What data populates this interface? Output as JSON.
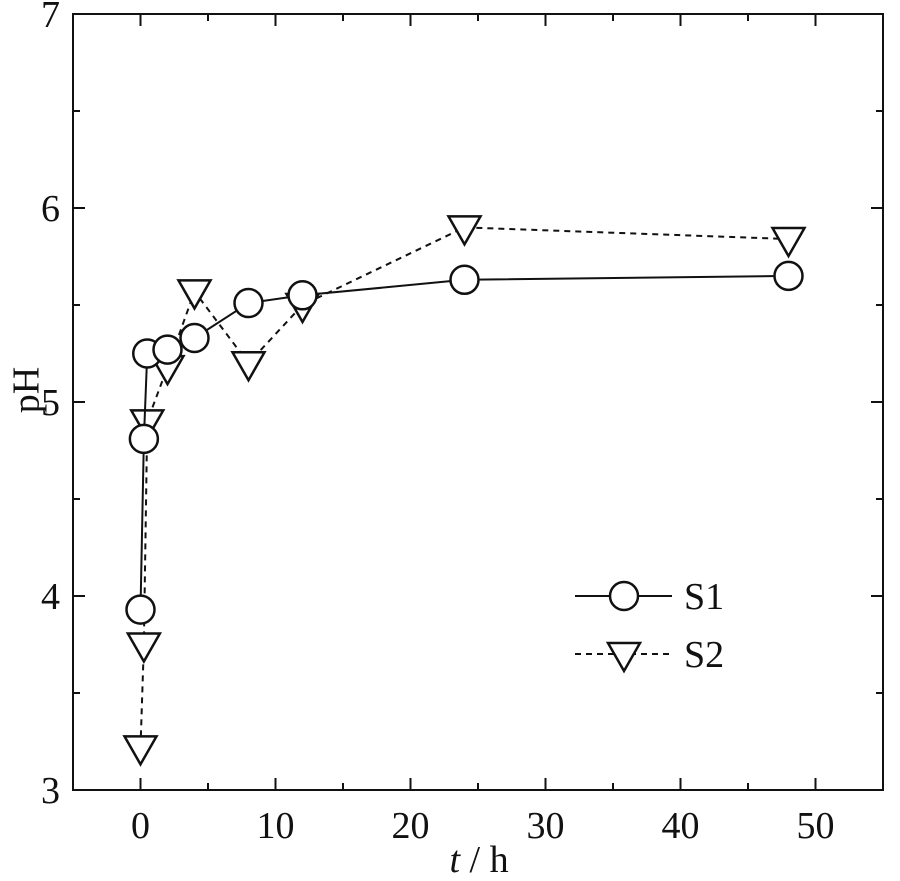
{
  "chart_data": {
    "type": "line",
    "title": "",
    "xlabel": {
      "var": "t",
      "unit": "h"
    },
    "ylabel": "pH",
    "xlim": [
      -5,
      55
    ],
    "ylim": [
      3,
      7
    ],
    "xticks": [
      0,
      10,
      20,
      30,
      40,
      50
    ],
    "yticks": [
      3,
      4,
      5,
      6,
      7
    ],
    "grid": false,
    "legend_position": "bottom-right",
    "series": [
      {
        "name": "S1",
        "marker": "circle",
        "line_style": "solid",
        "color": "#111111",
        "x": [
          0,
          0.25,
          0.5,
          2,
          4,
          8,
          12,
          24,
          48
        ],
        "y": [
          3.93,
          4.81,
          5.25,
          5.27,
          5.33,
          5.51,
          5.55,
          5.63,
          5.65
        ]
      },
      {
        "name": "S2",
        "marker": "triangle-down",
        "line_style": "dashed",
        "color": "#111111",
        "x": [
          0,
          0.25,
          0.5,
          2,
          4,
          8,
          12,
          24,
          48
        ],
        "y": [
          3.22,
          3.75,
          4.9,
          5.18,
          5.57,
          5.2,
          5.5,
          5.9,
          5.84
        ]
      }
    ]
  }
}
